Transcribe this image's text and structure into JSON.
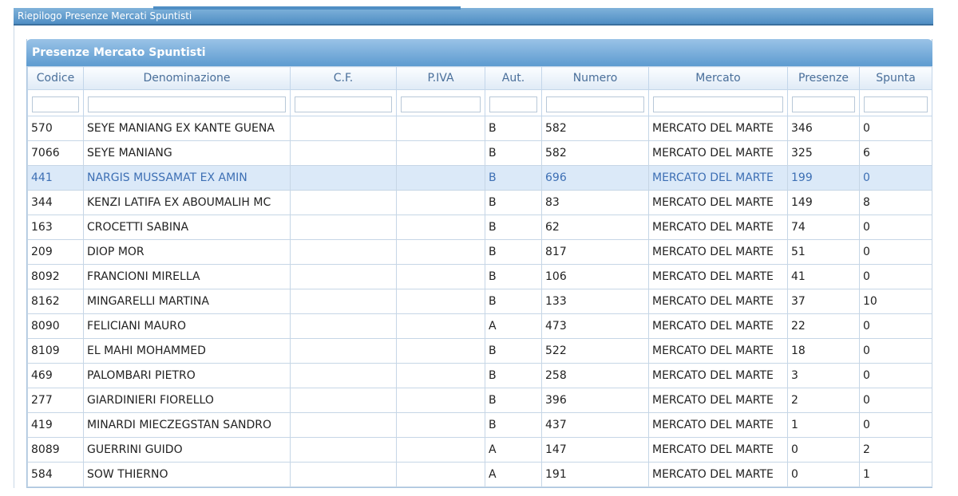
{
  "window": {
    "title": "Riepilogo Presenze Mercati Spuntisti"
  },
  "panel": {
    "title": "Presenze Mercato Spuntisti"
  },
  "columns": [
    {
      "key": "codice",
      "label": "Codice"
    },
    {
      "key": "denominazione",
      "label": "Denominazione"
    },
    {
      "key": "cf",
      "label": "C.F."
    },
    {
      "key": "piva",
      "label": "P.IVA"
    },
    {
      "key": "aut",
      "label": "Aut."
    },
    {
      "key": "numero",
      "label": "Numero"
    },
    {
      "key": "mercato",
      "label": "Mercato"
    },
    {
      "key": "presenze",
      "label": "Presenze"
    },
    {
      "key": "spunta",
      "label": "Spunta"
    }
  ],
  "selected_row_index": 2,
  "rows": [
    {
      "codice": "570",
      "denominazione": "SEYE MANIANG EX KANTE GUENA",
      "cf": "",
      "piva": "",
      "aut": "B",
      "numero": "582",
      "mercato": "MERCATO DEL MARTE",
      "presenze": "346",
      "spunta": "0"
    },
    {
      "codice": "7066",
      "denominazione": "SEYE MANIANG",
      "cf": "",
      "piva": "",
      "aut": "B",
      "numero": "582",
      "mercato": "MERCATO DEL MARTE",
      "presenze": "325",
      "spunta": "6"
    },
    {
      "codice": "441",
      "denominazione": "NARGIS MUSSAMAT EX AMIN",
      "cf": "",
      "piva": "",
      "aut": "B",
      "numero": "696",
      "mercato": "MERCATO DEL MARTE",
      "presenze": "199",
      "spunta": "0"
    },
    {
      "codice": "344",
      "denominazione": "KENZI LATIFA EX ABOUMALIH MC",
      "cf": "",
      "piva": "",
      "aut": "B",
      "numero": "83",
      "mercato": "MERCATO DEL MARTE",
      "presenze": "149",
      "spunta": "8"
    },
    {
      "codice": "163",
      "denominazione": "CROCETTI SABINA",
      "cf": "",
      "piva": "",
      "aut": "B",
      "numero": "62",
      "mercato": "MERCATO DEL MARTE",
      "presenze": "74",
      "spunta": "0"
    },
    {
      "codice": "209",
      "denominazione": "DIOP MOR",
      "cf": "",
      "piva": "",
      "aut": "B",
      "numero": "817",
      "mercato": "MERCATO DEL MARTE",
      "presenze": "51",
      "spunta": "0"
    },
    {
      "codice": "8092",
      "denominazione": "FRANCIONI MIRELLA",
      "cf": "",
      "piva": "",
      "aut": "B",
      "numero": "106",
      "mercato": "MERCATO DEL MARTE",
      "presenze": "41",
      "spunta": "0"
    },
    {
      "codice": "8162",
      "denominazione": "MINGARELLI MARTINA",
      "cf": "",
      "piva": "",
      "aut": "B",
      "numero": "133",
      "mercato": "MERCATO DEL MARTE",
      "presenze": "37",
      "spunta": "10"
    },
    {
      "codice": "8090",
      "denominazione": "FELICIANI MAURO",
      "cf": "",
      "piva": "",
      "aut": "A",
      "numero": "473",
      "mercato": "MERCATO DEL MARTE",
      "presenze": "22",
      "spunta": "0"
    },
    {
      "codice": "8109",
      "denominazione": "EL MAHI MOHAMMED",
      "cf": "",
      "piva": "",
      "aut": "B",
      "numero": "522",
      "mercato": "MERCATO DEL MARTE",
      "presenze": "18",
      "spunta": "0"
    },
    {
      "codice": "469",
      "denominazione": "PALOMBARI PIETRO",
      "cf": "",
      "piva": "",
      "aut": "B",
      "numero": "258",
      "mercato": "MERCATO DEL MARTE",
      "presenze": "3",
      "spunta": "0"
    },
    {
      "codice": "277",
      "denominazione": "GIARDINIERI FIORELLO",
      "cf": "",
      "piva": "",
      "aut": "B",
      "numero": "396",
      "mercato": "MERCATO DEL MARTE",
      "presenze": "2",
      "spunta": "0"
    },
    {
      "codice": "419",
      "denominazione": "MINARDI MIECZEGSTAN SANDRO",
      "cf": "",
      "piva": "",
      "aut": "B",
      "numero": "437",
      "mercato": "MERCATO DEL MARTE",
      "presenze": "1",
      "spunta": "0"
    },
    {
      "codice": "8089",
      "denominazione": "GUERRINI GUIDO",
      "cf": "",
      "piva": "",
      "aut": "A",
      "numero": "147",
      "mercato": "MERCATO DEL MARTE",
      "presenze": "0",
      "spunta": "2"
    },
    {
      "codice": "584",
      "denominazione": "SOW THIERNO",
      "cf": "",
      "piva": "",
      "aut": "A",
      "numero": "191",
      "mercato": "MERCATO DEL MARTE",
      "presenze": "0",
      "spunta": "1"
    }
  ]
}
